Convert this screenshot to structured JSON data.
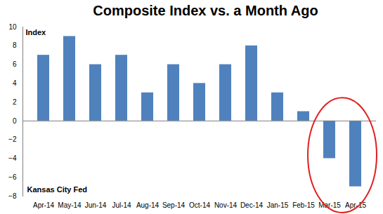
{
  "chart_data": {
    "type": "bar",
    "title": "Composite Index vs. a Month Ago",
    "ylabel": "Index",
    "annotations": [
      "Kansas City Fed"
    ],
    "categories": [
      "Apr-14",
      "May-14",
      "Jun-14",
      "Jul-14",
      "Aug-14",
      "Sep-14",
      "Oct-14",
      "Nov-14",
      "Dec-14",
      "Jan-15",
      "Feb-15",
      "Mar-15",
      "Apr-15"
    ],
    "values": [
      7,
      9,
      6,
      7,
      3,
      6,
      4,
      6,
      8,
      3,
      1,
      -4,
      -7
    ],
    "color": "#4f81bd",
    "ylim": [
      -8,
      10
    ],
    "yticks": [
      -8,
      -6,
      -4,
      -2,
      0,
      2,
      4,
      6,
      8,
      10
    ],
    "grid": false
  }
}
